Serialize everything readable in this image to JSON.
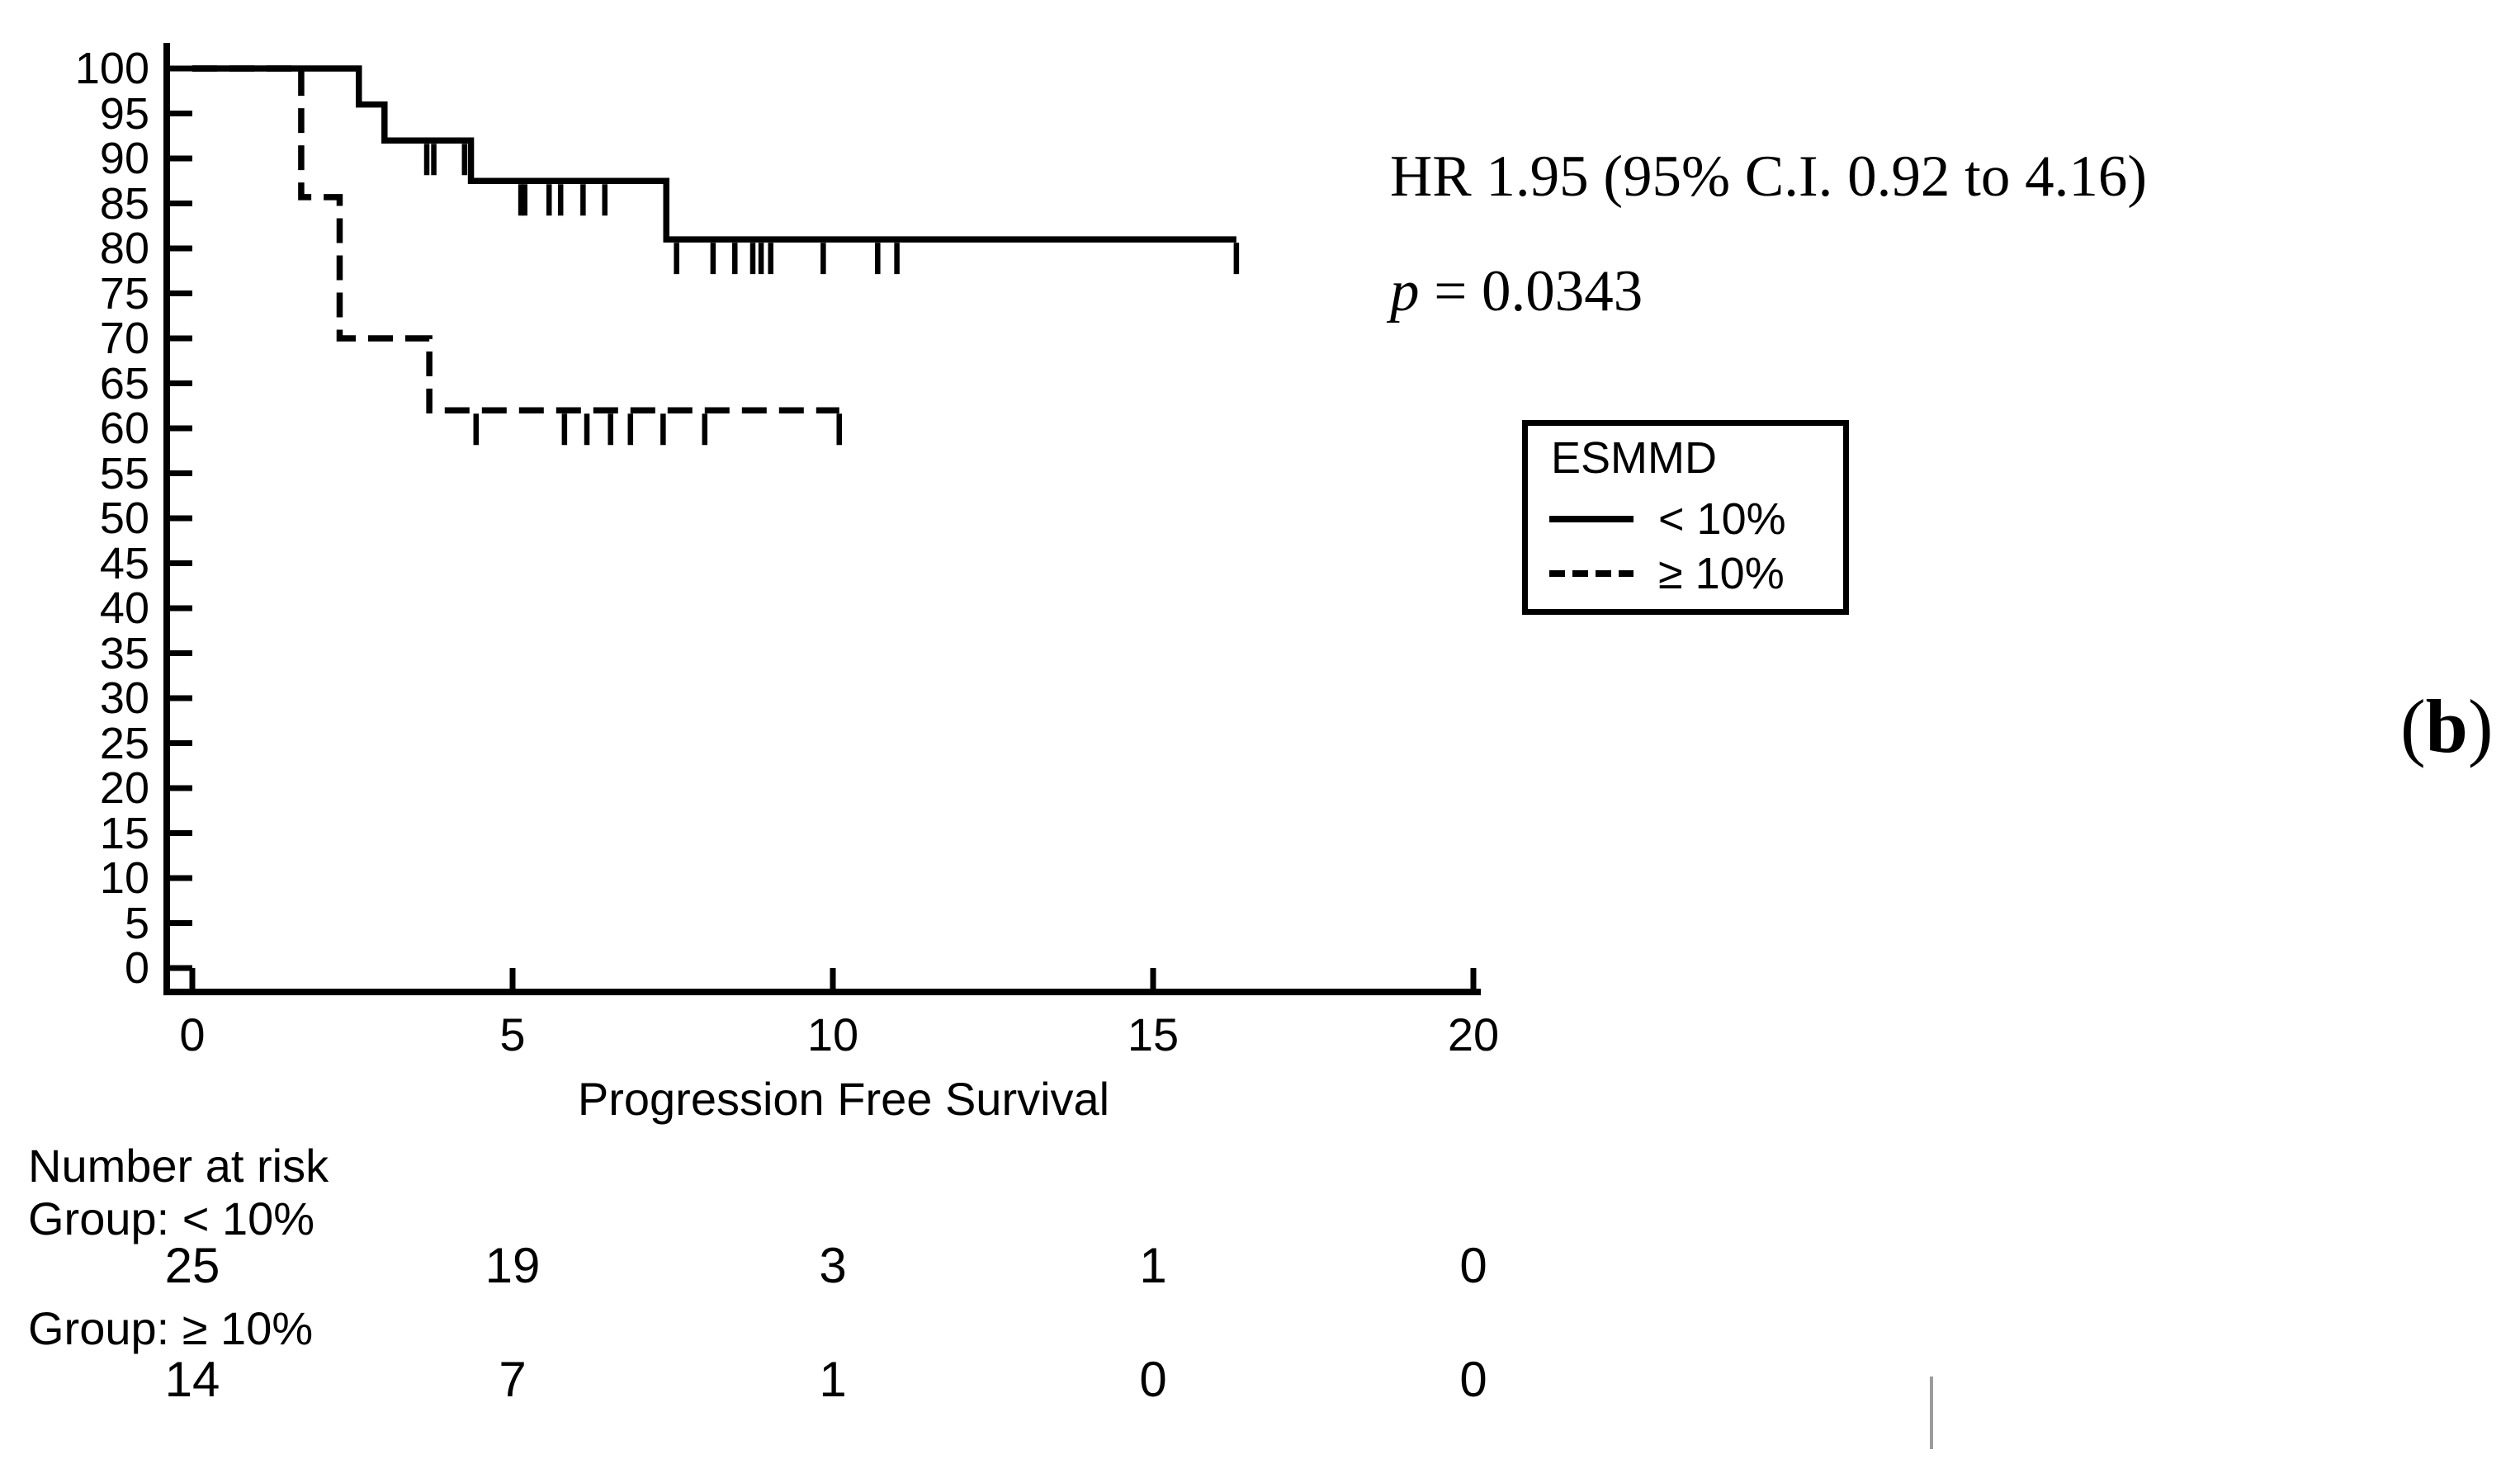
{
  "figure_label": {
    "open": "(",
    "letter": "b",
    "close": ")"
  },
  "annotations": {
    "hr": "HR 1.95 (95% C.I. 0.92 to 4.16)",
    "p_symbol": "p",
    "p_rest": " = 0.0343"
  },
  "legend": {
    "title": "ESMMD",
    "items": [
      {
        "label": "< 10%",
        "line": "solid"
      },
      {
        "label": "≥ 10%",
        "line": "dashed"
      }
    ]
  },
  "risk_table": {
    "title": "Number at risk",
    "time_points": [
      0,
      5,
      10,
      15,
      20
    ],
    "groups": [
      {
        "label": "Group: < 10%",
        "counts": [
          "25",
          "19",
          "3",
          "1",
          "0"
        ]
      },
      {
        "label": "Group: ≥ 10%",
        "counts": [
          "14",
          "7",
          "1",
          "0",
          "0"
        ]
      }
    ]
  },
  "chart_data": {
    "type": "line",
    "subtype": "kaplan-meier-step",
    "title": "",
    "xlabel": "Progression Free Survival",
    "ylabel": "",
    "xlim": [
      0,
      20
    ],
    "ylim": [
      0,
      100
    ],
    "xticks": [
      0,
      5,
      10,
      15,
      20
    ],
    "yticks": [
      0,
      5,
      10,
      15,
      20,
      25,
      30,
      35,
      40,
      45,
      50,
      55,
      60,
      65,
      70,
      75,
      80,
      85,
      90,
      95,
      100
    ],
    "grid": false,
    "legend_position": "right-box",
    "series": [
      {
        "name": "< 10%",
        "style": "solid",
        "steps": [
          [
            0,
            100
          ],
          [
            2.6,
            100
          ],
          [
            2.6,
            96
          ],
          [
            3.0,
            96
          ],
          [
            3.0,
            92
          ],
          [
            4.35,
            92
          ],
          [
            4.35,
            87.5
          ],
          [
            7.4,
            87.5
          ],
          [
            7.4,
            81
          ],
          [
            16.3,
            81
          ]
        ],
        "censor_marks": [
          [
            3.66,
            92
          ],
          [
            3.77,
            92
          ],
          [
            4.25,
            92
          ],
          [
            5.13,
            87.5
          ],
          [
            5.19,
            87.5
          ],
          [
            5.57,
            87.5
          ],
          [
            5.75,
            87.5
          ],
          [
            6.1,
            87.5
          ],
          [
            6.44,
            87.5
          ],
          [
            7.56,
            81
          ],
          [
            8.13,
            81
          ],
          [
            8.47,
            81
          ],
          [
            8.75,
            81
          ],
          [
            8.88,
            81
          ],
          [
            9.03,
            81
          ],
          [
            9.85,
            81
          ],
          [
            10.7,
            81
          ],
          [
            11.0,
            81
          ],
          [
            16.3,
            81
          ]
        ]
      },
      {
        "name": "≥ 10%",
        "style": "dashed",
        "steps": [
          [
            0,
            100
          ],
          [
            1.7,
            100
          ],
          [
            1.7,
            85.7
          ],
          [
            2.3,
            85.7
          ],
          [
            2.3,
            70
          ],
          [
            3.7,
            70
          ],
          [
            3.7,
            62
          ],
          [
            10.1,
            62
          ]
        ],
        "censor_marks": [
          [
            4.43,
            62
          ],
          [
            5.81,
            62
          ],
          [
            6.16,
            62
          ],
          [
            6.53,
            62
          ],
          [
            6.84,
            62
          ],
          [
            7.35,
            62
          ],
          [
            8.0,
            62
          ],
          [
            10.1,
            62
          ]
        ]
      }
    ]
  },
  "colors": {
    "line": "#000000",
    "text": "#000000",
    "background": "#ffffff",
    "caret": "#9c9c9c"
  }
}
